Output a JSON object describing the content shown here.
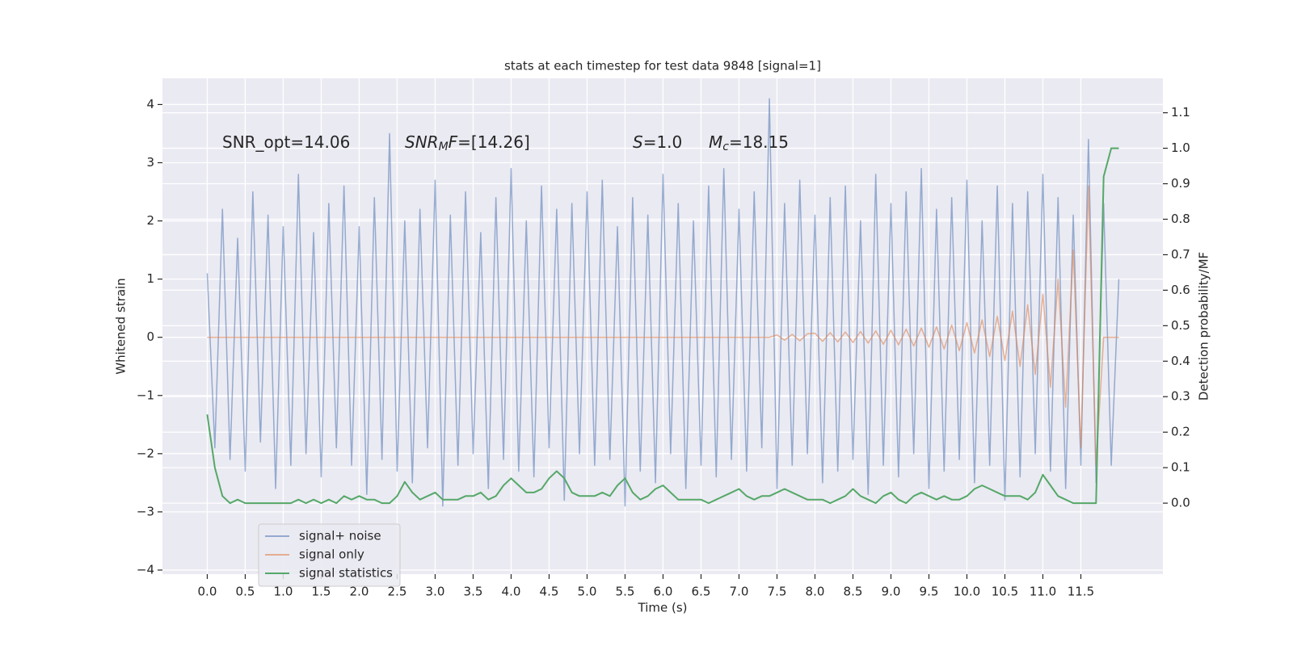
{
  "chart_data": {
    "type": "line",
    "title": "stats at each timestep for test data 9848 [signal=1]",
    "xlabel": "Time (s)",
    "ylabel": "Whitened strain",
    "y2label": "Detection probability/MF",
    "annotations": [
      {
        "parts": [
          {
            "text": "SNR_opt=14.06"
          }
        ]
      },
      {
        "parts": [
          {
            "text": "SNR",
            "italic": true
          },
          {
            "text": "M",
            "italic": true,
            "sub": true
          },
          {
            "text": "F",
            "italic": true
          },
          {
            "text": "=[14.26]"
          }
        ]
      },
      {
        "parts": [
          {
            "text": "S",
            "italic": true
          },
          {
            "text": "=1.0"
          }
        ]
      },
      {
        "parts": [
          {
            "text": "M",
            "italic": true
          },
          {
            "text": "c",
            "italic": true,
            "sub": true
          },
          {
            "text": "=18.15"
          }
        ]
      }
    ],
    "x": [
      0,
      0.1,
      0.2,
      0.3,
      0.4,
      0.5,
      0.6,
      0.7,
      0.8,
      0.9,
      1,
      1.1,
      1.2,
      1.3,
      1.4,
      1.5,
      1.6,
      1.7,
      1.8,
      1.9,
      2,
      2.1,
      2.2,
      2.3,
      2.4,
      2.5,
      2.6,
      2.7,
      2.8,
      2.9,
      3,
      3.1,
      3.2,
      3.3,
      3.4,
      3.5,
      3.6,
      3.7,
      3.8,
      3.9,
      4,
      4.1,
      4.2,
      4.3,
      4.4,
      4.5,
      4.6,
      4.7,
      4.8,
      4.9,
      5,
      5.1,
      5.2,
      5.3,
      5.4,
      5.5,
      5.6,
      5.7,
      5.8,
      5.9,
      6,
      6.1,
      6.2,
      6.3,
      6.4,
      6.5,
      6.6,
      6.7,
      6.8,
      6.9,
      7,
      7.1,
      7.2,
      7.3,
      7.4,
      7.5,
      7.6,
      7.7,
      7.8,
      7.9,
      8,
      8.1,
      8.2,
      8.3,
      8.4,
      8.5,
      8.6,
      8.7,
      8.8,
      8.9,
      9,
      9.1,
      9.2,
      9.3,
      9.4,
      9.5,
      9.6,
      9.7,
      9.8,
      9.9,
      10,
      10.1,
      10.2,
      10.3,
      10.4,
      10.5,
      10.6,
      10.7,
      10.8,
      10.9,
      11,
      11.1,
      11.2,
      11.3,
      11.4,
      11.5,
      11.6,
      11.7,
      11.8,
      11.9,
      12
    ],
    "series": [
      {
        "name": "signal+ noise",
        "color": "#4c72b0",
        "opacity": 0.55,
        "values": [
          1.1,
          -1.9,
          2.2,
          -2.1,
          1.7,
          -2.3,
          2.5,
          -1.8,
          2.1,
          -2.6,
          1.9,
          -2.2,
          2.8,
          -2.0,
          1.8,
          -2.4,
          2.3,
          -1.9,
          2.6,
          -2.2,
          1.9,
          -2.7,
          2.4,
          -2.1,
          3.5,
          -2.3,
          2.0,
          -2.5,
          2.2,
          -1.9,
          2.7,
          -2.9,
          2.1,
          -2.2,
          2.5,
          -2.0,
          1.8,
          -2.6,
          2.4,
          -2.1,
          2.9,
          -2.3,
          2.0,
          -2.4,
          2.6,
          -1.9,
          2.2,
          -2.8,
          2.3,
          -2.0,
          2.5,
          -2.2,
          2.7,
          -2.1,
          1.9,
          -2.9,
          2.4,
          -2.3,
          2.1,
          -2.5,
          2.8,
          -2.0,
          2.3,
          -2.6,
          2.0,
          -2.2,
          2.6,
          -2.4,
          2.9,
          -2.1,
          2.2,
          -2.3,
          2.5,
          -1.9,
          4.1,
          -2.6,
          2.3,
          -2.2,
          2.7,
          -2.0,
          2.1,
          -2.5,
          2.4,
          -2.3,
          2.6,
          -2.1,
          2.0,
          -2.7,
          2.8,
          -2.2,
          2.3,
          -2.4,
          2.5,
          -2.0,
          2.9,
          -2.6,
          2.2,
          -2.3,
          2.4,
          -2.1,
          2.7,
          -2.5,
          2.0,
          -2.2,
          2.6,
          -2.8,
          2.3,
          -2.4,
          2.5,
          -2.0,
          2.8,
          -2.3,
          2.4,
          -2.6,
          2.1,
          -2.2,
          3.4,
          -2.5,
          2.3,
          -2.2,
          1.0
        ]
      },
      {
        "name": "signal only",
        "color": "#dd8452",
        "opacity": 0.6,
        "values": [
          0,
          0,
          0,
          0,
          0,
          0,
          0,
          0,
          0,
          0,
          0,
          0,
          0,
          0,
          0,
          0,
          0,
          0,
          0,
          0,
          0,
          0,
          0,
          0,
          0,
          0,
          0,
          0,
          0,
          0,
          0,
          0,
          0,
          0,
          0,
          0,
          0,
          0,
          0,
          0,
          0,
          0,
          0,
          0,
          0,
          0,
          0,
          0,
          0,
          0,
          0,
          0,
          0,
          0,
          0,
          0,
          0,
          0,
          0,
          0,
          0,
          0,
          0,
          0,
          0,
          0,
          0,
          0,
          0,
          0,
          0,
          0,
          0,
          0,
          0,
          0.04,
          -0.05,
          0.05,
          -0.06,
          0.06,
          0.07,
          -0.07,
          0.08,
          -0.08,
          0.09,
          -0.09,
          0.1,
          -0.1,
          0.11,
          -0.12,
          0.12,
          -0.13,
          0.14,
          -0.15,
          0.16,
          -0.17,
          0.18,
          -0.2,
          0.21,
          -0.23,
          0.25,
          -0.27,
          0.3,
          -0.33,
          0.36,
          -0.4,
          0.45,
          -0.5,
          0.56,
          -0.64,
          0.74,
          -0.86,
          1.0,
          -1.2,
          1.5,
          -1.9,
          2.6,
          -2.2,
          0,
          0,
          0
        ]
      },
      {
        "name": "signal statistics",
        "color": "#55a868",
        "opacity": 1,
        "axis": "y2",
        "values": [
          0.25,
          0.1,
          0.02,
          0.0,
          0.01,
          0.0,
          0.0,
          0.0,
          0.0,
          0.0,
          0.0,
          0.0,
          0.01,
          0.0,
          0.01,
          0.0,
          0.01,
          0.0,
          0.02,
          0.01,
          0.02,
          0.01,
          0.01,
          0.0,
          0.0,
          0.02,
          0.06,
          0.03,
          0.01,
          0.02,
          0.03,
          0.01,
          0.01,
          0.01,
          0.02,
          0.02,
          0.03,
          0.01,
          0.02,
          0.05,
          0.07,
          0.05,
          0.03,
          0.03,
          0.04,
          0.07,
          0.09,
          0.07,
          0.03,
          0.02,
          0.02,
          0.02,
          0.03,
          0.02,
          0.05,
          0.07,
          0.03,
          0.01,
          0.02,
          0.04,
          0.05,
          0.03,
          0.01,
          0.01,
          0.01,
          0.01,
          0.0,
          0.01,
          0.02,
          0.03,
          0.04,
          0.02,
          0.01,
          0.02,
          0.02,
          0.03,
          0.04,
          0.03,
          0.02,
          0.01,
          0.01,
          0.01,
          0.0,
          0.01,
          0.02,
          0.04,
          0.02,
          0.01,
          0.0,
          0.02,
          0.03,
          0.01,
          0.0,
          0.02,
          0.03,
          0.02,
          0.01,
          0.02,
          0.01,
          0.01,
          0.02,
          0.04,
          0.05,
          0.04,
          0.03,
          0.02,
          0.02,
          0.02,
          0.01,
          0.03,
          0.08,
          0.05,
          0.02,
          0.01,
          0.0,
          0.0,
          0.0,
          0.0,
          0.92,
          1.0,
          1.0
        ]
      }
    ],
    "xlim": [
      -0.59,
      12.58
    ],
    "ylim": [
      -4.07,
      4.45
    ],
    "y2lim": [
      -0.2,
      1.197
    ],
    "xticks": [
      {
        "value": 0,
        "label": "0.0"
      },
      0.5,
      {
        "value": 1,
        "label": "1.0"
      },
      1.5,
      {
        "value": 2,
        "label": "2.0"
      },
      2.5,
      {
        "value": 3,
        "label": "3.0"
      },
      3.5,
      {
        "value": 4,
        "label": "4.0"
      },
      4.5,
      {
        "value": 5,
        "label": "5.0"
      },
      5.5,
      {
        "value": 6,
        "label": "6.0"
      },
      6.5,
      {
        "value": 7,
        "label": "7.0"
      },
      7.5,
      {
        "value": 8,
        "label": "8.0"
      },
      8.5,
      {
        "value": 9,
        "label": "9.0"
      },
      9.5,
      {
        "value": 10,
        "label": "10.0"
      },
      10.5,
      {
        "value": 11,
        "label": "11.0"
      },
      11.5
    ],
    "yticks": [
      {
        "value": -4,
        "label": "−4"
      },
      {
        "value": -3,
        "label": "−3"
      },
      {
        "value": -2,
        "label": "−2"
      },
      {
        "value": -1,
        "label": "−1"
      },
      0,
      1,
      2,
      3,
      4
    ],
    "y2ticks": [
      {
        "value": 0,
        "label": "0.0"
      },
      0.1,
      0.2,
      0.3,
      0.4,
      0.5,
      0.6,
      0.7,
      0.8,
      0.9,
      {
        "value": 1,
        "label": "1.0"
      },
      1.1
    ],
    "grid": true,
    "legend": "lower left"
  }
}
